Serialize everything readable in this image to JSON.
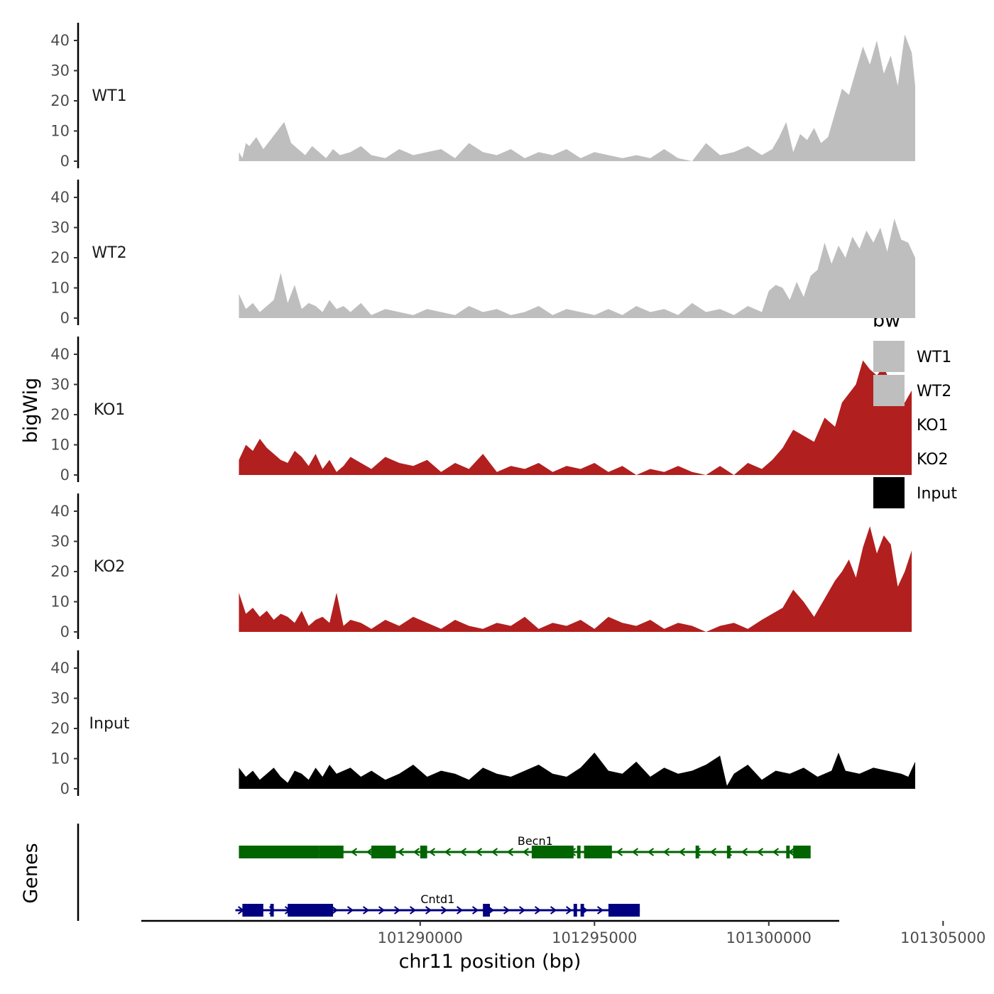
{
  "chart_data": {
    "type": "area",
    "ylabel": "bigWig",
    "xlabel": "chr11 position (bp)",
    "genes_label": "Genes",
    "ylim": [
      0,
      45
    ],
    "y_ticks": [
      {
        "value": 0,
        "label": "0"
      },
      {
        "value": 10,
        "label": "10"
      },
      {
        "value": 20,
        "label": "20"
      },
      {
        "value": 30,
        "label": "30"
      },
      {
        "value": 40,
        "label": "40"
      }
    ],
    "xlim": [
      101282000,
      101305000
    ],
    "x_ticks": [
      {
        "value": 101290000,
        "label": "101290000"
      },
      {
        "value": 101295000,
        "label": "101295000"
      },
      {
        "value": 101300000,
        "label": "101300000"
      },
      {
        "value": 101305000,
        "label": "101305000"
      }
    ],
    "legend": {
      "title": "bw",
      "entries": [
        {
          "label": "WT1",
          "color": "#bebebe"
        },
        {
          "label": "WT2",
          "color": "#bebebe"
        },
        {
          "label": "KO1",
          "color": "#b21f1f"
        },
        {
          "label": "KO2",
          "color": "#b21f1f"
        },
        {
          "label": "Input",
          "color": "#000000"
        }
      ]
    },
    "series": [
      {
        "name": "WT1",
        "color": "#bebebe",
        "x": [
          101284800,
          101284900,
          101285000,
          101285100,
          101285300,
          101285500,
          101285700,
          101285900,
          101286100,
          101286300,
          101286500,
          101286700,
          101286900,
          101287100,
          101287300,
          101287500,
          101287700,
          101288000,
          101288300,
          101288600,
          101289000,
          101289400,
          101289800,
          101290200,
          101290600,
          101291000,
          101291400,
          101291800,
          101292200,
          101292600,
          101293000,
          101293400,
          101293800,
          101294200,
          101294600,
          101295000,
          101295400,
          101295800,
          101296200,
          101296600,
          101297000,
          101297400,
          101297800,
          101298200,
          101298600,
          101299000,
          101299400,
          101299800,
          101300100,
          101300300,
          101300500,
          101300700,
          101300900,
          101301100,
          101301300,
          101301500,
          101301700,
          101301900,
          101302100,
          101302300,
          101302500,
          101302700,
          101302900,
          101303100,
          101303300,
          101303500,
          101303700,
          101303900,
          101304100,
          101304200
        ],
        "values": [
          3,
          1,
          6,
          5,
          8,
          4,
          7,
          10,
          13,
          6,
          4,
          2,
          5,
          3,
          1,
          4,
          2,
          3,
          5,
          2,
          1,
          4,
          2,
          3,
          4,
          1,
          6,
          3,
          2,
          4,
          1,
          3,
          2,
          4,
          1,
          3,
          2,
          1,
          2,
          1,
          4,
          1,
          0,
          6,
          2,
          3,
          5,
          2,
          4,
          8,
          13,
          3,
          9,
          7,
          11,
          6,
          8,
          16,
          24,
          22,
          30,
          38,
          32,
          40,
          29,
          35,
          25,
          42,
          36,
          25
        ]
      },
      {
        "name": "WT2",
        "color": "#bebebe",
        "x": [
          101284800,
          101285000,
          101285200,
          101285400,
          101285600,
          101285800,
          101286000,
          101286200,
          101286400,
          101286600,
          101286800,
          101287000,
          101287200,
          101287400,
          101287600,
          101287800,
          101288000,
          101288300,
          101288600,
          101289000,
          101289400,
          101289800,
          101290200,
          101290600,
          101291000,
          101291400,
          101291800,
          101292200,
          101292600,
          101293000,
          101293400,
          101293800,
          101294200,
          101294600,
          101295000,
          101295400,
          101295800,
          101296200,
          101296600,
          101297000,
          101297400,
          101297800,
          101298200,
          101298600,
          101299000,
          101299400,
          101299800,
          101300000,
          101300200,
          101300400,
          101300600,
          101300800,
          101301000,
          101301200,
          101301400,
          101301600,
          101301800,
          101302000,
          101302200,
          101302400,
          101302600,
          101302800,
          101303000,
          101303200,
          101303400,
          101303600,
          101303800,
          101304000,
          101304200
        ],
        "values": [
          8,
          3,
          5,
          2,
          4,
          6,
          15,
          5,
          11,
          3,
          5,
          4,
          2,
          6,
          3,
          4,
          2,
          5,
          1,
          3,
          2,
          1,
          3,
          2,
          1,
          4,
          2,
          3,
          1,
          2,
          4,
          1,
          3,
          2,
          1,
          3,
          1,
          4,
          2,
          3,
          1,
          5,
          2,
          3,
          1,
          4,
          2,
          9,
          11,
          10,
          6,
          12,
          7,
          14,
          16,
          25,
          18,
          24,
          20,
          27,
          23,
          29,
          25,
          30,
          22,
          33,
          26,
          25,
          20
        ]
      },
      {
        "name": "KO1",
        "color": "#b21f1f",
        "x": [
          101284800,
          101285000,
          101285200,
          101285400,
          101285600,
          101285800,
          101286000,
          101286200,
          101286400,
          101286600,
          101286800,
          101287000,
          101287200,
          101287400,
          101287600,
          101287800,
          101288000,
          101288300,
          101288600,
          101289000,
          101289400,
          101289800,
          101290200,
          101290600,
          101291000,
          101291400,
          101291800,
          101292200,
          101292600,
          101293000,
          101293400,
          101293800,
          101294200,
          101294600,
          101295000,
          101295400,
          101295800,
          101296200,
          101296600,
          101297000,
          101297400,
          101297800,
          101298200,
          101298600,
          101299000,
          101299400,
          101299800,
          101300100,
          101300400,
          101300700,
          101301000,
          101301300,
          101301600,
          101301900,
          101302100,
          101302300,
          101302500,
          101302700,
          101302900,
          101303100,
          101303300,
          101303500,
          101303700,
          101303900,
          101304100
        ],
        "values": [
          5,
          10,
          8,
          12,
          9,
          7,
          5,
          4,
          8,
          6,
          3,
          7,
          2,
          5,
          1,
          3,
          6,
          4,
          2,
          6,
          4,
          3,
          5,
          1,
          4,
          2,
          7,
          1,
          3,
          2,
          4,
          1,
          3,
          2,
          4,
          1,
          3,
          0,
          2,
          1,
          3,
          1,
          0,
          3,
          0,
          4,
          2,
          5,
          9,
          15,
          13,
          11,
          19,
          16,
          24,
          27,
          30,
          38,
          35,
          33,
          36,
          30,
          27,
          24,
          28
        ]
      },
      {
        "name": "KO2",
        "color": "#b21f1f",
        "x": [
          101284800,
          101285000,
          101285200,
          101285400,
          101285600,
          101285800,
          101286000,
          101286200,
          101286400,
          101286600,
          101286800,
          101287000,
          101287200,
          101287400,
          101287600,
          101287800,
          101288000,
          101288300,
          101288600,
          101289000,
          101289400,
          101289800,
          101290200,
          101290600,
          101291000,
          101291400,
          101291800,
          101292200,
          101292600,
          101293000,
          101293400,
          101293800,
          101294200,
          101294600,
          101295000,
          101295400,
          101295800,
          101296200,
          101296600,
          101297000,
          101297400,
          101297800,
          101298200,
          101298600,
          101299000,
          101299400,
          101299800,
          101300100,
          101300400,
          101300700,
          101301000,
          101301300,
          101301600,
          101301900,
          101302100,
          101302300,
          101302500,
          101302700,
          101302900,
          101303100,
          101303300,
          101303500,
          101303700,
          101303900,
          101304100
        ],
        "values": [
          13,
          6,
          8,
          5,
          7,
          4,
          6,
          5,
          3,
          7,
          2,
          4,
          5,
          3,
          13,
          2,
          4,
          3,
          1,
          4,
          2,
          5,
          3,
          1,
          4,
          2,
          1,
          3,
          2,
          5,
          1,
          3,
          2,
          4,
          1,
          5,
          3,
          2,
          4,
          1,
          3,
          2,
          0,
          2,
          3,
          1,
          4,
          6,
          8,
          14,
          10,
          5,
          11,
          17,
          20,
          24,
          18,
          28,
          35,
          26,
          32,
          29,
          15,
          20,
          27
        ]
      },
      {
        "name": "Input",
        "color": "#000000",
        "x": [
          101284800,
          101285000,
          101285200,
          101285400,
          101285600,
          101285800,
          101286000,
          101286200,
          101286400,
          101286600,
          101286800,
          101287000,
          101287200,
          101287400,
          101287600,
          101287800,
          101288000,
          101288300,
          101288600,
          101289000,
          101289400,
          101289800,
          101290200,
          101290600,
          101291000,
          101291400,
          101291800,
          101292200,
          101292600,
          101293000,
          101293400,
          101293800,
          101294200,
          101294600,
          101295000,
          101295400,
          101295800,
          101296200,
          101296600,
          101297000,
          101297400,
          101297800,
          101298200,
          101298600,
          101298800,
          101299000,
          101299400,
          101299800,
          101300200,
          101300600,
          101301000,
          101301400,
          101301800,
          101302000,
          101302200,
          101302600,
          101303000,
          101303400,
          101303800,
          101304000,
          101304200
        ],
        "values": [
          7,
          4,
          6,
          3,
          5,
          7,
          4,
          2,
          6,
          5,
          3,
          7,
          4,
          8,
          5,
          6,
          7,
          4,
          6,
          3,
          5,
          8,
          4,
          6,
          5,
          3,
          7,
          5,
          4,
          6,
          8,
          5,
          4,
          7,
          12,
          6,
          5,
          9,
          4,
          7,
          5,
          6,
          8,
          11,
          1,
          5,
          8,
          3,
          6,
          5,
          7,
          4,
          6,
          12,
          6,
          5,
          7,
          6,
          5,
          4,
          9
        ]
      }
    ],
    "genes": [
      {
        "name": "Becn1",
        "color": "#006400",
        "strand": "-",
        "start": 101284800,
        "end": 101301200,
        "label_x": 101293300,
        "exons": [
          [
            101284800,
            101287100
          ],
          [
            101287100,
            101287800
          ],
          [
            101288600,
            101289300
          ],
          [
            101290000,
            101290200
          ],
          [
            101293200,
            101294400
          ],
          [
            101294500,
            101294600
          ],
          [
            101294700,
            101295500
          ],
          [
            101297900,
            101298000
          ],
          [
            101298800,
            101298900
          ],
          [
            101300500,
            101300600
          ],
          [
            101300700,
            101301200
          ]
        ]
      },
      {
        "name": "Cntd1",
        "color": "#000080",
        "strand": "+",
        "start": 101284700,
        "end": 101296300,
        "label_x": 101290500,
        "exons": [
          [
            101284900,
            101285500
          ],
          [
            101285700,
            101285800
          ],
          [
            101286200,
            101287500
          ],
          [
            101291800,
            101292000
          ],
          [
            101294400,
            101294500
          ],
          [
            101294600,
            101294700
          ],
          [
            101295400,
            101296300
          ]
        ]
      }
    ]
  }
}
